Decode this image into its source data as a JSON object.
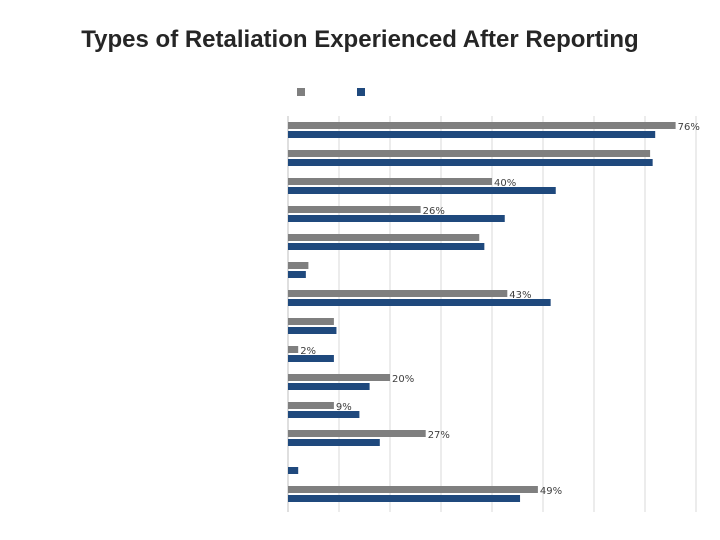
{
  "title": "Types of Retaliation Experienced After Reporting",
  "colors": {
    "series1": "#7f7f7f",
    "series2": "#1f497d",
    "grid": "#d9d9d9"
  },
  "chart_data": {
    "type": "bar",
    "orientation": "horizontal",
    "title": "Types of Retaliation Experienced After Reporting",
    "xlim": [
      0,
      80
    ],
    "grid": true,
    "legend": "top",
    "categories": [
      "",
      "",
      "",
      "",
      "",
      "",
      "",
      "",
      "",
      "",
      "",
      "",
      "",
      ""
    ],
    "series": [
      {
        "values": [
          76,
          71,
          40,
          26,
          37.5,
          4,
          43,
          9,
          2,
          20,
          9,
          27,
          0,
          49
        ],
        "labels": [
          "76%",
          "",
          "40%",
          "26%",
          "",
          "",
          "43%",
          "",
          "2%",
          "20%",
          "9%",
          "27%",
          "",
          "49%"
        ]
      },
      {
        "values": [
          72,
          71.5,
          52.5,
          42.5,
          38.5,
          3.5,
          51.5,
          9.5,
          9,
          16,
          14,
          18,
          2,
          45.5
        ]
      }
    ]
  }
}
